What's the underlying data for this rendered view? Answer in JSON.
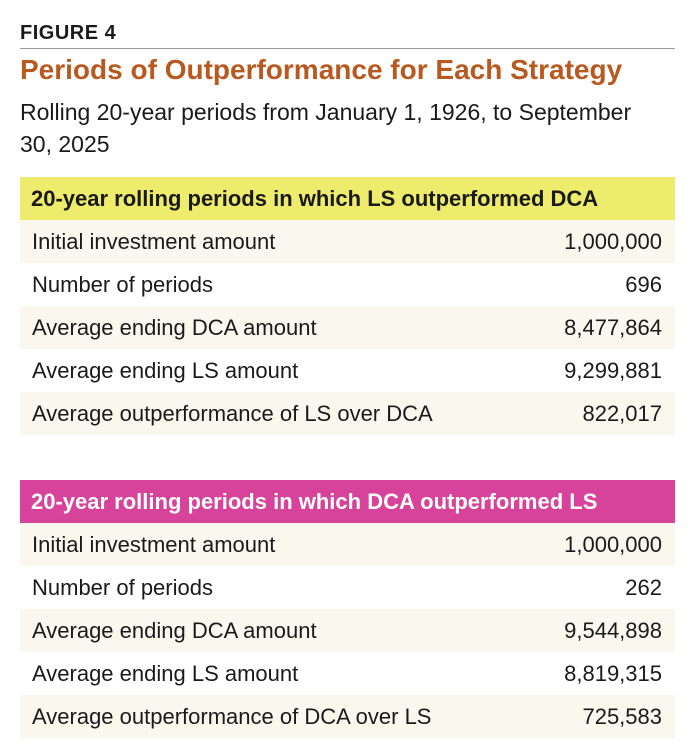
{
  "figure_label": "FIGURE 4",
  "title": "Periods of Outperformance for Each Strategy",
  "subtitle": "Rolling 20-year periods from January 1, 1926, to September 30, 2025",
  "tables": [
    {
      "header": "20-year rolling periods in which LS outperformed DCA",
      "header_color": "#eeec6c",
      "rows": [
        {
          "label": "Initial investment amount",
          "value": "1,000,000"
        },
        {
          "label": "Number of periods",
          "value": "696"
        },
        {
          "label": "Average ending DCA amount",
          "value": "8,477,864"
        },
        {
          "label": "Average ending LS amount",
          "value": "9,299,881"
        },
        {
          "label": "Average outperformance of LS over DCA",
          "value": "822,017"
        }
      ]
    },
    {
      "header": "20-year rolling periods in which DCA outperformed LS",
      "header_color": "#d7439a",
      "rows": [
        {
          "label": "Initial investment amount",
          "value": "1,000,000"
        },
        {
          "label": "Number of periods",
          "value": "262"
        },
        {
          "label": "Average ending DCA amount",
          "value": "9,544,898"
        },
        {
          "label": "Average ending LS amount",
          "value": "8,819,315"
        },
        {
          "label": "Average outperformance of DCA over LS",
          "value": "725,583"
        }
      ]
    }
  ]
}
